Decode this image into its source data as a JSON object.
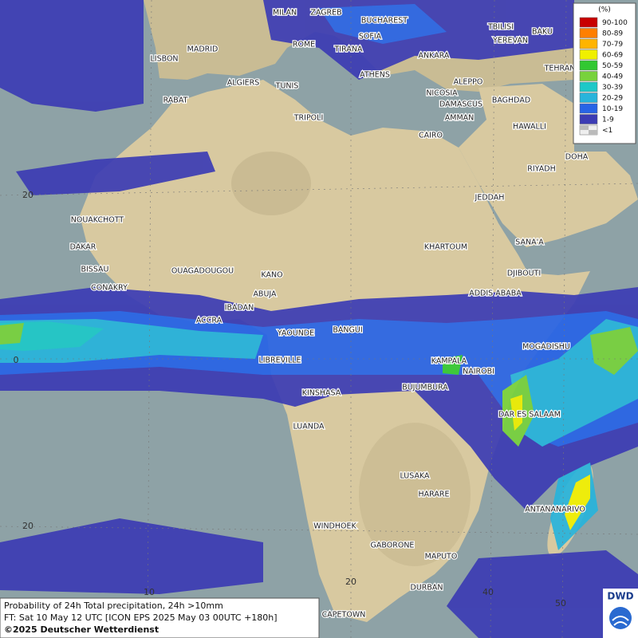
{
  "map": {
    "cities": [
      "MILAN",
      "ZAGREB",
      "BUCHAREST",
      "TBILISI",
      "BAKU",
      "MADRID",
      "ROME",
      "SOFIA",
      "YEREVAN",
      "LISBON",
      "TIRANA",
      "ANKARA",
      "TEHRAN",
      "ATHENS",
      "ALGIERS",
      "TUNIS",
      "ALEPPO",
      "RABAT",
      "NICOSIA",
      "BAGHDAD",
      "DAMASCUS",
      "AMMAN",
      "TRIPOLI",
      "HAWALLI",
      "CAIRO",
      "DOHA",
      "RIYADH",
      "JEDDAH",
      "NOUAKCHOTT",
      "SANA'A",
      "DAKAR",
      "KHARTOUM",
      "BISSAU",
      "OUAGADOUGOU",
      "KANO",
      "DJIBOUTI",
      "CONAKRY",
      "ABUJA",
      "ADDIS ABABA",
      "IBADAN",
      "ACCRA",
      "YAOUNDE",
      "BANGUI",
      "MOGADISHU",
      "LIBREVILLE",
      "KAMPALA",
      "NAIROBI",
      "KINSHASA",
      "BUJUMBURA",
      "DAR ES SALAAM",
      "LUANDA",
      "LUSAKA",
      "HARARE",
      "ANTANANARIVO",
      "WINDHOEK",
      "GABORONE",
      "MAPUTO",
      "DURBAN",
      "CAPETOWN"
    ],
    "grid_labels": [
      "20",
      "0",
      "20",
      "10",
      "20",
      "40",
      "50"
    ]
  },
  "legend": {
    "unit": "(%)",
    "items": [
      {
        "label": "90-100",
        "color": "#c80000"
      },
      {
        "label": "80-89",
        "color": "#ff7f00"
      },
      {
        "label": "70-79",
        "color": "#ffb400"
      },
      {
        "label": "60-69",
        "color": "#f0f000"
      },
      {
        "label": "50-59",
        "color": "#32c832"
      },
      {
        "label": "40-49",
        "color": "#78d23c"
      },
      {
        "label": "30-39",
        "color": "#1ec8c8"
      },
      {
        "label": "20-29",
        "color": "#28b4dc"
      },
      {
        "label": "10-19",
        "color": "#2864e6"
      },
      {
        "label": "1-9",
        "color": "#3c3cb4"
      },
      {
        "label": "<1",
        "color": "#bbbbbb"
      }
    ]
  },
  "footer": {
    "line1": "Probability of 24h Total precipitation, 24h >10mm",
    "line2": "FT: Sat 10 May 12 UTC [ICON EPS 2025 May 03 00UTC +180h]",
    "line3": "©2025 Deutscher Wetterdienst"
  },
  "logo": "DWD"
}
